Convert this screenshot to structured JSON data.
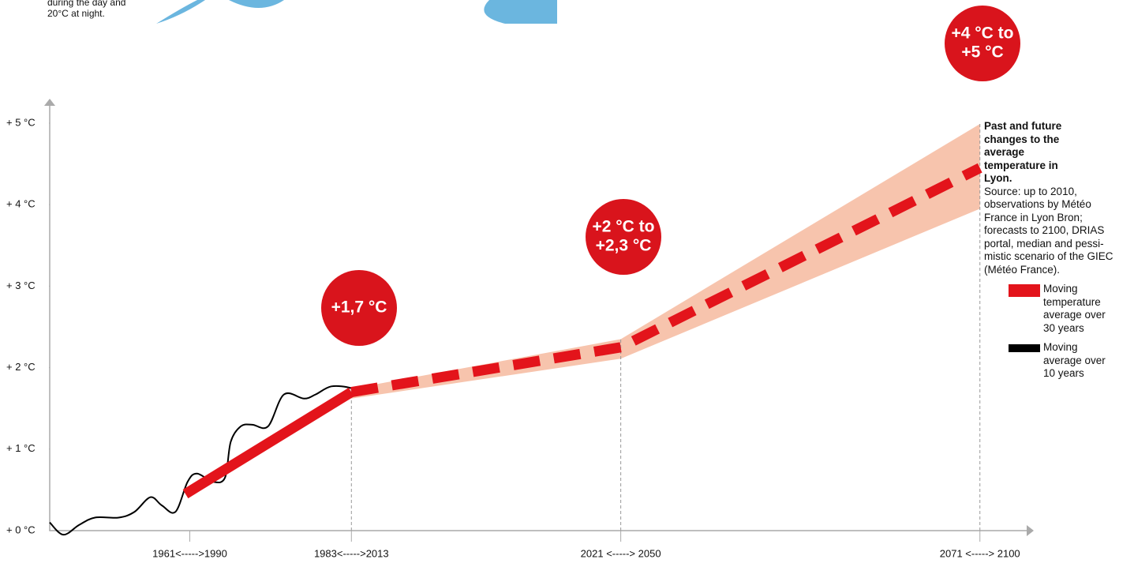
{
  "fragment": [
    "during the day and",
    "20°C at night."
  ],
  "chart_data": {
    "type": "line",
    "xlim": [
      1956,
      2093
    ],
    "xticks": [
      {
        "value": 1975.5,
        "label": "1961<----->1990"
      },
      {
        "value": 1998,
        "label": "1983<----->2013"
      },
      {
        "value": 2035.5,
        "label": "2021 <-----> 2050"
      },
      {
        "value": 2085.5,
        "label": "2071 <-----> 2100"
      }
    ],
    "ylim": [
      0,
      5.3
    ],
    "yticks": [
      {
        "value": 0,
        "label": "+ 0 °C"
      },
      {
        "value": 1,
        "label": "+ 1 °C"
      },
      {
        "value": 2,
        "label": "+ 2 °C"
      },
      {
        "value": 3,
        "label": "+ 3 °C"
      },
      {
        "value": 4,
        "label": "+ 4 °C"
      },
      {
        "value": 5,
        "label": "+ 5 °C"
      }
    ],
    "series": [
      {
        "name": "Moving temperature average over 30 years",
        "color": "#e3141b",
        "x": [
          1974.9,
          1998
        ],
        "values": [
          0.45,
          1.7
        ]
      },
      {
        "name": "Moving average over 10 years",
        "color": "#000000",
        "x": [
          1956,
          1957.9,
          1960.1,
          1962.3,
          1965.6,
          1967.8,
          1970,
          1971.6,
          1973.5,
          1975.2,
          1976.5,
          1978.7,
          1980.4,
          1981.2,
          1982.6,
          1984.2,
          1986.4,
          1988.6,
          1991.4,
          1993,
          1995.2,
          1997.9,
          1999
        ],
        "values": [
          0.1,
          -0.05,
          0.07,
          0.16,
          0.16,
          0.23,
          0.41,
          0.31,
          0.23,
          0.6,
          0.7,
          0.6,
          0.65,
          1.09,
          1.28,
          1.3,
          1.28,
          1.67,
          1.62,
          1.67,
          1.77,
          1.75,
          1.67
        ]
      },
      {
        "color": "#e3141b",
        "style": "dashed",
        "x": [
          1998,
          2035.5,
          2085.5
        ],
        "values": [
          1.7,
          2.25,
          4.45
        ]
      }
    ],
    "band": {
      "color": "#f7c4ad",
      "x": [
        1998,
        2035.5,
        2085.5
      ],
      "low": [
        1.62,
        2.11,
        3.95
      ],
      "high": [
        1.74,
        2.35,
        4.99
      ]
    },
    "annotations": [
      {
        "lines": [
          "+1,7 °C"
        ]
      },
      {
        "lines": [
          "+2 °C to",
          "+2,3 °C"
        ]
      },
      {
        "lines": [
          "+4 °C to",
          "+5 °C"
        ]
      }
    ],
    "annotation_color": "#d9141c",
    "note": {
      "title": "Past and future changes to the average temperature in Lyon.",
      "source": "Source: up to 2010, observations by Météo France in Lyon Bron; forecasts to 2100, DRIAS portal, median and pessi-mistic scenario of the GIEC (Météo France)."
    }
  }
}
